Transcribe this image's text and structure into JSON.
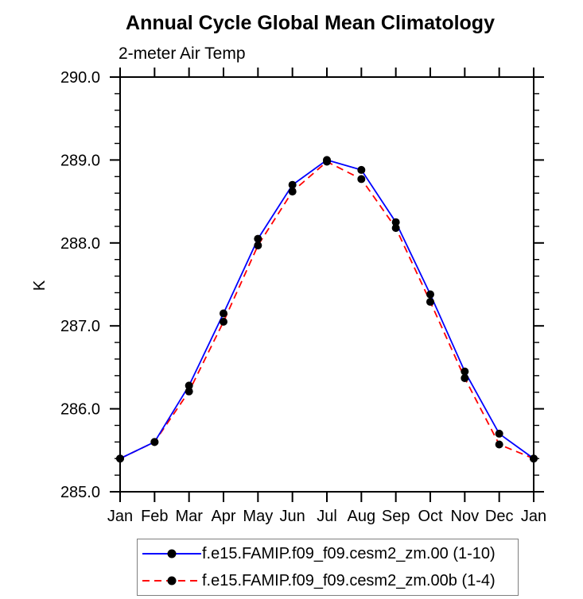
{
  "page": {
    "background": "#ffffff"
  },
  "chart_data": {
    "type": "line",
    "title": "Annual Cycle Global Mean Climatology",
    "subtitle": "2-meter Air Temp",
    "ylabel": "K",
    "xlabel": "",
    "categories": [
      "Jan",
      "Feb",
      "Mar",
      "Apr",
      "May",
      "Jun",
      "Jul",
      "Aug",
      "Sep",
      "Oct",
      "Nov",
      "Dec",
      "Jan"
    ],
    "ylim": [
      285.0,
      290.0
    ],
    "ytick_major": 1.0,
    "ytick_minor": 0.2,
    "ytick_labels": [
      "285.0",
      "286.0",
      "287.0",
      "288.0",
      "289.0",
      "290.0"
    ],
    "grid": false,
    "legend_position": "bottom",
    "axis_color": "#000000",
    "series": [
      {
        "name": "f.e15.FAMIP.f09_f09.cesm2_zm.00 (1-10)",
        "color": "#0000ff",
        "line_style": "solid",
        "marker": "filled-circle",
        "marker_color": "#000000",
        "values": [
          285.4,
          285.6,
          286.28,
          287.15,
          288.05,
          288.7,
          289.0,
          288.88,
          288.25,
          287.38,
          286.45,
          285.7,
          285.4
        ]
      },
      {
        "name": "f.e15.FAMIP.f09_f09.cesm2_zm.00b (1-4)",
        "color": "#ff0000",
        "line_style": "dashed",
        "marker": "filled-circle",
        "marker_color": "#000000",
        "values": [
          285.4,
          285.6,
          286.21,
          287.05,
          287.97,
          288.62,
          288.98,
          288.77,
          288.18,
          287.29,
          286.37,
          285.57,
          285.4
        ]
      }
    ]
  }
}
